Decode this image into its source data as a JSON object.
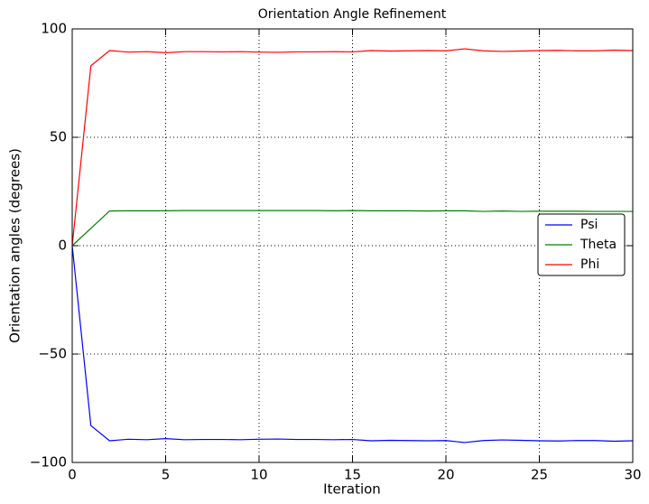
{
  "chart_data": {
    "type": "line",
    "title": "Orientation Angle Refinement",
    "x_label": "Iteration",
    "y_label": "Orientation angles (degrees)",
    "x": [
      0,
      1,
      2,
      3,
      4,
      5,
      6,
      7,
      8,
      9,
      10,
      11,
      12,
      13,
      14,
      15,
      16,
      17,
      18,
      19,
      20,
      21,
      22,
      23,
      24,
      25,
      26,
      27,
      28,
      29,
      30
    ],
    "series": [
      {
        "name": "Psi",
        "color": "#0000ff",
        "values": [
          0,
          -83,
          -90,
          -89.3,
          -89.5,
          -89,
          -89.5,
          -89.4,
          -89.4,
          -89.5,
          -89.3,
          -89.2,
          -89.4,
          -89.4,
          -89.5,
          -89.4,
          -90,
          -89.8,
          -89.9,
          -90,
          -89.9,
          -90.8,
          -89.9,
          -89.6,
          -89.8,
          -90,
          -90.1,
          -89.9,
          -89.9,
          -90.2,
          -90
        ]
      },
      {
        "name": "Theta",
        "color": "#008000",
        "values": [
          0,
          8,
          16,
          16.1,
          16.1,
          16.1,
          16.2,
          16.2,
          16.2,
          16.2,
          16.2,
          16.2,
          16.2,
          16.2,
          16.1,
          16.2,
          16.1,
          16.1,
          16.1,
          16,
          16.1,
          16.1,
          15.8,
          16,
          15.8,
          15.9,
          15.9,
          15.9,
          15.8,
          15.8,
          15.8
        ]
      },
      {
        "name": "Phi",
        "color": "#ff0000",
        "values": [
          0,
          83,
          90,
          89.3,
          89.5,
          89,
          89.5,
          89.5,
          89.4,
          89.5,
          89.3,
          89.2,
          89.4,
          89.4,
          89.5,
          89.4,
          90,
          89.8,
          89.9,
          90,
          89.9,
          90.8,
          89.9,
          89.6,
          89.8,
          90,
          90.1,
          89.9,
          89.9,
          90.2,
          90
        ]
      }
    ],
    "xlim": [
      0,
      30
    ],
    "xticks": [
      0,
      5,
      10,
      15,
      20,
      25,
      30
    ],
    "ylim": [
      -100,
      100
    ],
    "yticks": [
      {
        "value": -100,
        "label": "−100"
      },
      {
        "value": -50,
        "label": "−50"
      },
      0,
      50,
      100
    ],
    "grid": true,
    "legend": "right"
  }
}
